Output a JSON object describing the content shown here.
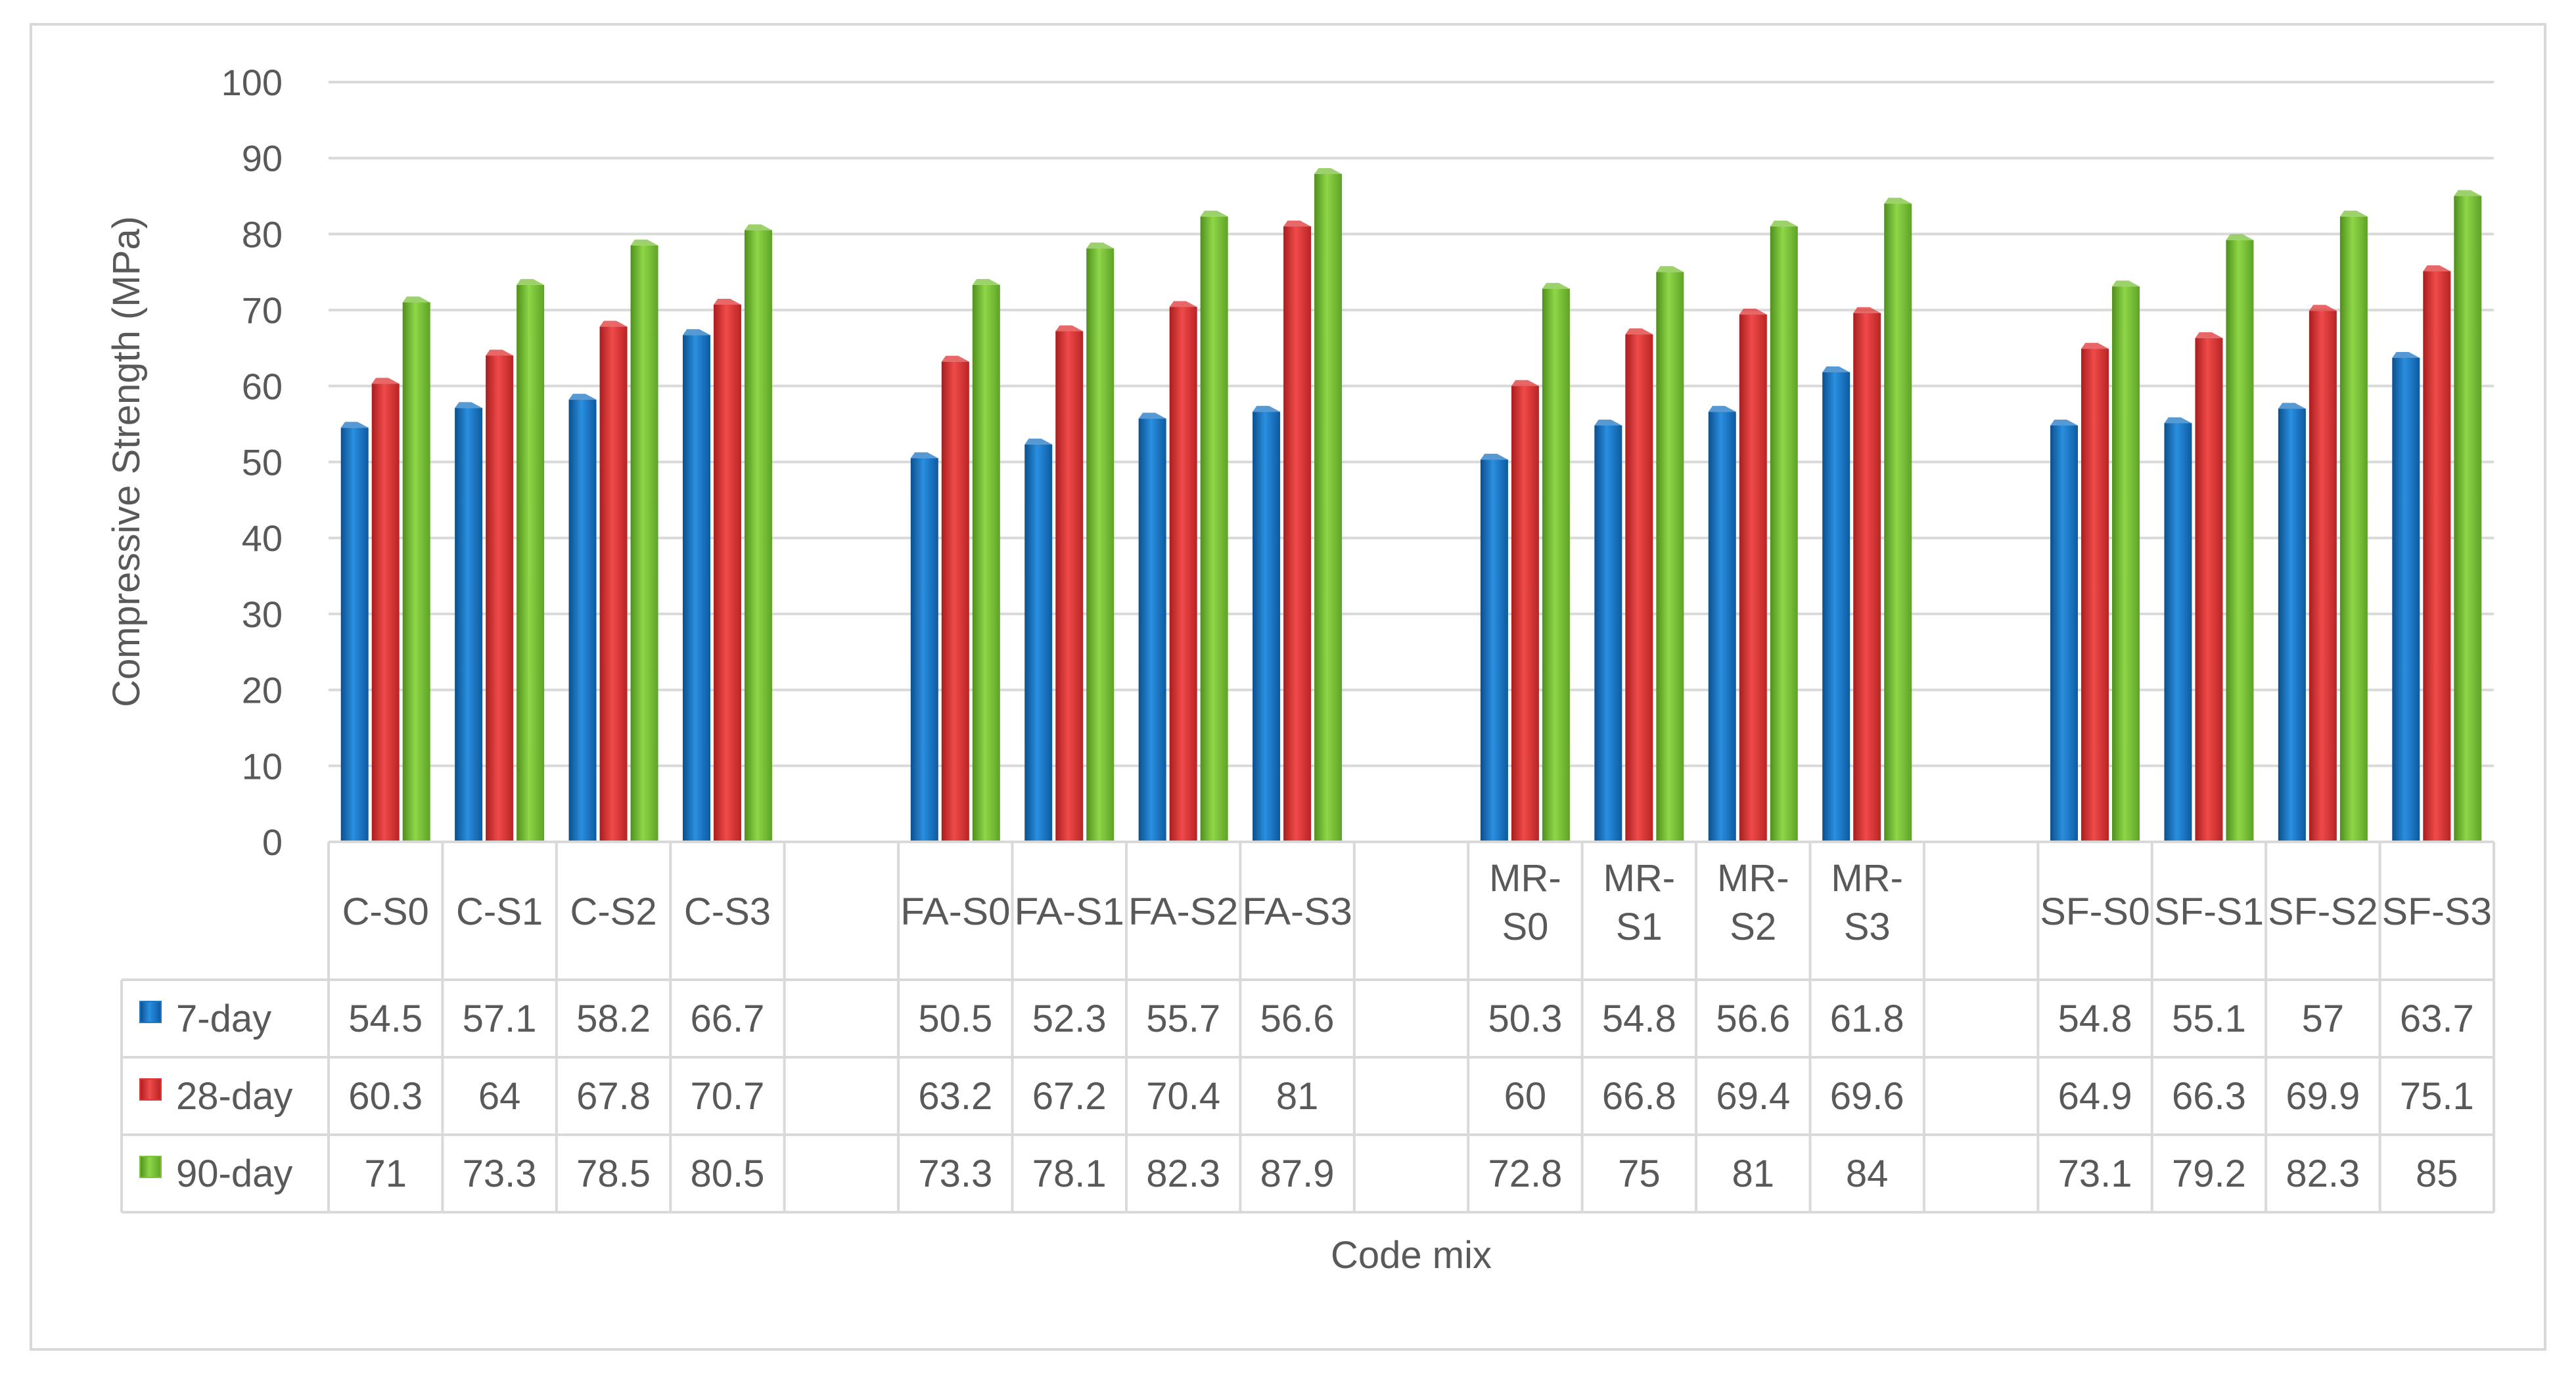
{
  "chart_data": {
    "type": "bar",
    "xlabel": "Code mix",
    "ylabel": "Compressive Strength (MPa)",
    "ylim": [
      0,
      100
    ],
    "yticks": [
      0,
      10,
      20,
      30,
      40,
      50,
      60,
      70,
      80,
      90,
      100
    ],
    "grid": true,
    "legend": "data-table",
    "categories": [
      "C-S0",
      "C-S1",
      "C-S2",
      "C-S3",
      "",
      "FA-S0",
      "FA-S1",
      "FA-S2",
      "FA-S3",
      "",
      "MR-S0",
      "MR-S1",
      "MR-S2",
      "MR-S3",
      "",
      "SF-S0",
      "SF-S1",
      "SF-S2",
      "SF-S3"
    ],
    "series": [
      {
        "name": "7-day",
        "color": "#1f77c4",
        "values": [
          54.5,
          57.1,
          58.2,
          66.7,
          null,
          50.5,
          52.3,
          55.7,
          56.6,
          null,
          50.3,
          54.8,
          56.6,
          61.8,
          null,
          54.8,
          55.1,
          57,
          63.7
        ]
      },
      {
        "name": "28-day",
        "color": "#e03636",
        "values": [
          60.3,
          64,
          67.8,
          70.7,
          null,
          63.2,
          67.2,
          70.4,
          81,
          null,
          60,
          66.8,
          69.4,
          69.6,
          null,
          64.9,
          66.3,
          69.9,
          75.1
        ]
      },
      {
        "name": "90-day",
        "color": "#7cc23a",
        "values": [
          71,
          73.3,
          78.5,
          80.5,
          null,
          73.3,
          78.1,
          82.3,
          87.9,
          null,
          72.8,
          75,
          81,
          84,
          null,
          73.1,
          79.2,
          82.3,
          85
        ]
      }
    ]
  }
}
